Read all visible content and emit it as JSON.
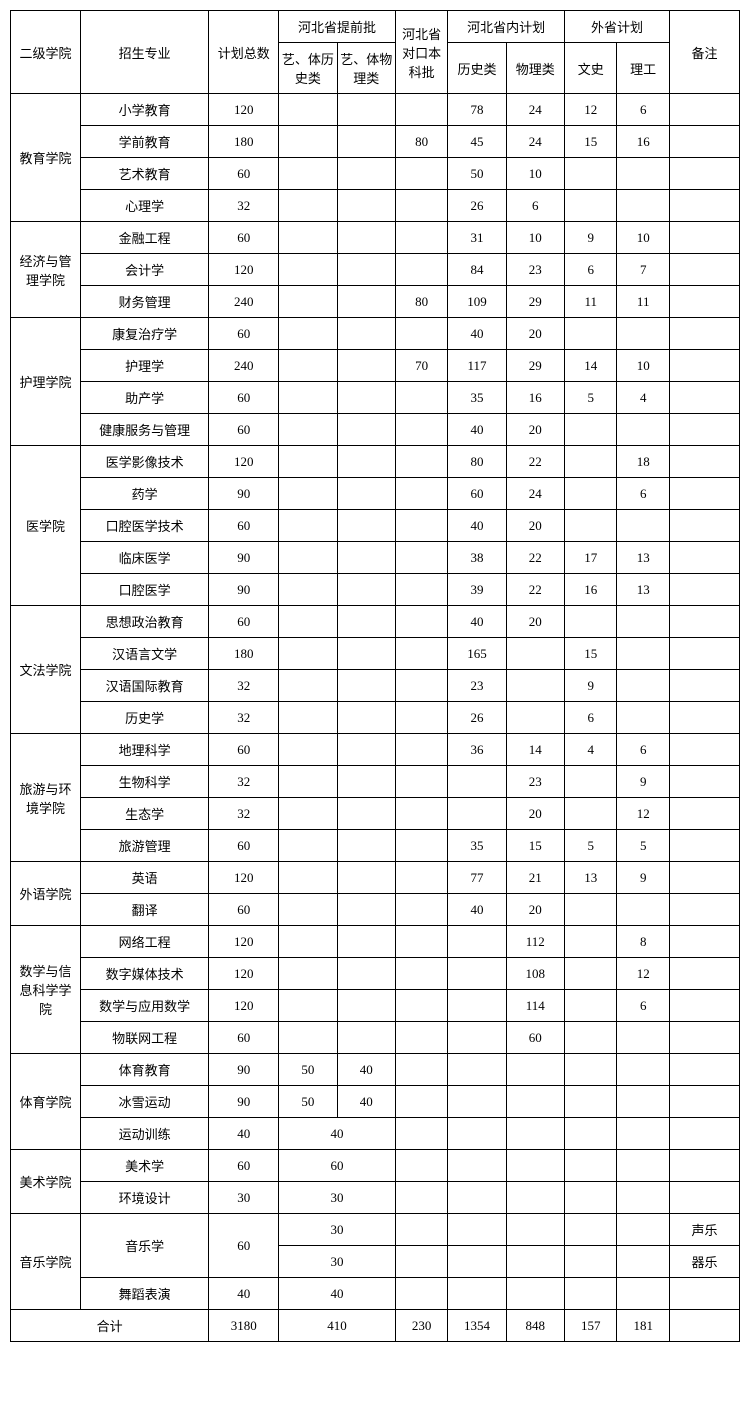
{
  "headers": {
    "college": "二级学院",
    "major": "招生专业",
    "total": "计划总数",
    "hebei_advance": "河北省提前批",
    "art_hist": "艺、体历史类",
    "art_phys": "艺、体物理类",
    "duikou": "河北省对口本科批",
    "hebei_plan": "河北省内计划",
    "hist": "历史类",
    "phys": "物理类",
    "out_plan": "外省计划",
    "wenshi": "文史",
    "ligong": "理工",
    "note": "备注"
  },
  "colleges": [
    {
      "name": "教育学院",
      "rows": [
        {
          "major": "小学教育",
          "total": "120",
          "hist": "78",
          "phys": "24",
          "wenshi": "12",
          "ligong": "6"
        },
        {
          "major": "学前教育",
          "total": "180",
          "duikou": "80",
          "hist": "45",
          "phys": "24",
          "wenshi": "15",
          "ligong": "16"
        },
        {
          "major": "艺术教育",
          "total": "60",
          "hist": "50",
          "phys": "10"
        },
        {
          "major": "心理学",
          "total": "32",
          "hist": "26",
          "phys": "6"
        }
      ]
    },
    {
      "name": "经济与管理学院",
      "rows": [
        {
          "major": "金融工程",
          "total": "60",
          "hist": "31",
          "phys": "10",
          "wenshi": "9",
          "ligong": "10"
        },
        {
          "major": "会计学",
          "total": "120",
          "hist": "84",
          "phys": "23",
          "wenshi": "6",
          "ligong": "7"
        },
        {
          "major": "财务管理",
          "total": "240",
          "duikou": "80",
          "hist": "109",
          "phys": "29",
          "wenshi": "11",
          "ligong": "11"
        }
      ]
    },
    {
      "name": "护理学院",
      "rows": [
        {
          "major": "康复治疗学",
          "total": "60",
          "hist": "40",
          "phys": "20"
        },
        {
          "major": "护理学",
          "total": "240",
          "duikou": "70",
          "hist": "117",
          "phys": "29",
          "wenshi": "14",
          "ligong": "10"
        },
        {
          "major": "助产学",
          "total": "60",
          "hist": "35",
          "phys": "16",
          "wenshi": "5",
          "ligong": "4"
        },
        {
          "major": "健康服务与管理",
          "total": "60",
          "hist": "40",
          "phys": "20"
        }
      ]
    },
    {
      "name": "医学院",
      "rows": [
        {
          "major": "医学影像技术",
          "total": "120",
          "hist": "80",
          "phys": "22",
          "ligong": "18"
        },
        {
          "major": "药学",
          "total": "90",
          "hist": "60",
          "phys": "24",
          "ligong": "6"
        },
        {
          "major": "口腔医学技术",
          "total": "60",
          "hist": "40",
          "phys": "20"
        },
        {
          "major": "临床医学",
          "total": "90",
          "hist": "38",
          "phys": "22",
          "wenshi": "17",
          "ligong": "13"
        },
        {
          "major": "口腔医学",
          "total": "90",
          "hist": "39",
          "phys": "22",
          "wenshi": "16",
          "ligong": "13"
        }
      ]
    },
    {
      "name": "文法学院",
      "rows": [
        {
          "major": "思想政治教育",
          "total": "60",
          "hist": "40",
          "phys": "20"
        },
        {
          "major": "汉语言文学",
          "total": "180",
          "hist": "165",
          "wenshi": "15"
        },
        {
          "major": "汉语国际教育",
          "total": "32",
          "hist": "23",
          "wenshi": "9"
        },
        {
          "major": "历史学",
          "total": "32",
          "hist": "26",
          "wenshi": "6"
        }
      ]
    },
    {
      "name": "旅游与环境学院",
      "rows": [
        {
          "major": "地理科学",
          "total": "60",
          "hist": "36",
          "phys": "14",
          "wenshi": "4",
          "ligong": "6"
        },
        {
          "major": "生物科学",
          "total": "32",
          "phys": "23",
          "ligong": "9"
        },
        {
          "major": "生态学",
          "total": "32",
          "phys": "20",
          "ligong": "12"
        },
        {
          "major": "旅游管理",
          "total": "60",
          "hist": "35",
          "phys": "15",
          "wenshi": "5",
          "ligong": "5"
        }
      ]
    },
    {
      "name": "外语学院",
      "rows": [
        {
          "major": "英语",
          "total": "120",
          "hist": "77",
          "phys": "21",
          "wenshi": "13",
          "ligong": "9"
        },
        {
          "major": "翻译",
          "total": "60",
          "hist": "40",
          "phys": "20"
        }
      ]
    },
    {
      "name": "数学与信息科学学院",
      "rows": [
        {
          "major": "网络工程",
          "total": "120",
          "phys": "112",
          "ligong": "8"
        },
        {
          "major": "数字媒体技术",
          "total": "120",
          "phys": "108",
          "ligong": "12"
        },
        {
          "major": "数学与应用数学",
          "total": "120",
          "phys": "114",
          "ligong": "6"
        },
        {
          "major": "物联网工程",
          "total": "60",
          "phys": "60"
        }
      ]
    },
    {
      "name": "体育学院",
      "rows": [
        {
          "major": "体育教育",
          "total": "90",
          "art1": "50",
          "art2": "40"
        },
        {
          "major": "冰雪运动",
          "total": "90",
          "art1": "50",
          "art2": "40"
        },
        {
          "major": "运动训练",
          "total": "40",
          "art_merged": "40"
        }
      ]
    },
    {
      "name": "美术学院",
      "rows": [
        {
          "major": "美术学",
          "total": "60",
          "art_merged": "60"
        },
        {
          "major": "环境设计",
          "total": "30",
          "art_merged": "30"
        }
      ]
    }
  ],
  "music": {
    "name": "音乐学院",
    "music_major": "音乐学",
    "music_total": "60",
    "music_val1": "30",
    "music_val2": "30",
    "note1": "声乐",
    "note2": "器乐",
    "dance_major": "舞蹈表演",
    "dance_total": "40",
    "dance_val": "40"
  },
  "total_row": {
    "label": "合计",
    "total": "3180",
    "art_merged": "410",
    "duikou": "230",
    "hist": "1354",
    "phys": "848",
    "wenshi": "157",
    "ligong": "181"
  }
}
